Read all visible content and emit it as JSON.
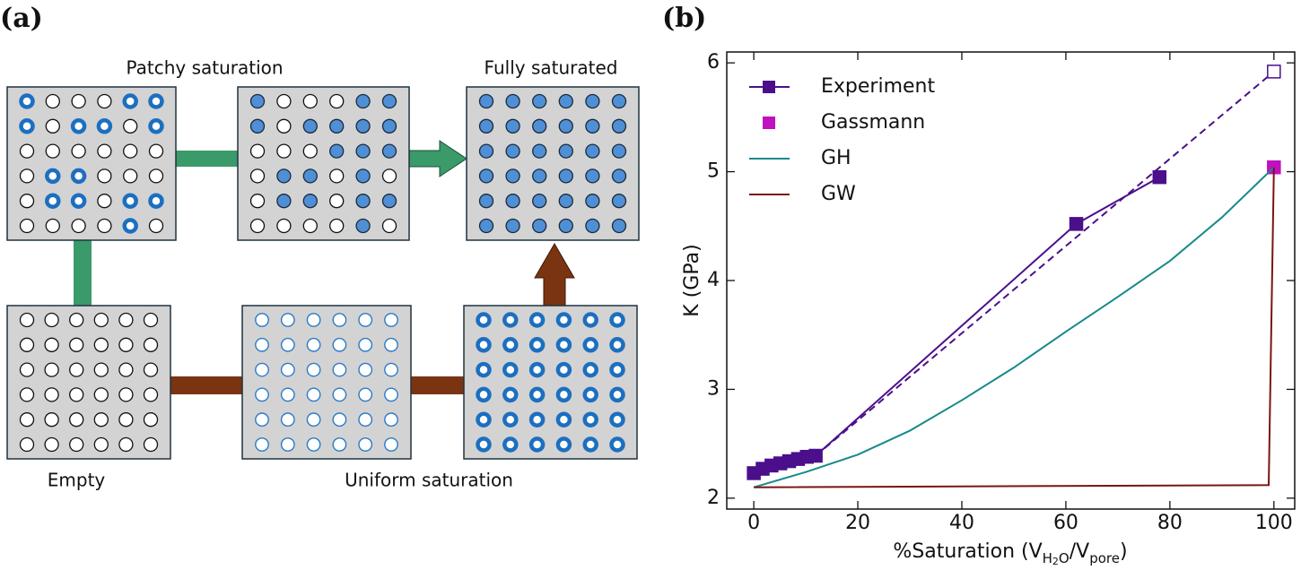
{
  "diagram": {
    "panel_label": "(a)",
    "labels": {
      "patchy": "Patchy saturation",
      "full": "Fully saturated",
      "empty": "Empty",
      "uniform": "Uniform saturation"
    }
  },
  "chart_data": {
    "type": "line",
    "panel_label": "(b)",
    "xlabel": {
      "main": "%Saturation (V",
      "sub1": "H",
      "sub2": "2",
      "sub3": "O",
      "mid": "/V",
      "sub4": "pore",
      "end": ")"
    },
    "ylabel": "K (GPa)",
    "xlim": [
      -5.2,
      104
    ],
    "ylim": [
      1.9,
      6.1
    ],
    "xticks": [
      0,
      20,
      40,
      60,
      80,
      100
    ],
    "yticks": [
      2,
      3,
      4,
      5,
      6
    ],
    "legend": "upper left",
    "series": [
      {
        "name": "Experiment",
        "color": "#4b0f8c",
        "marker": "square",
        "line": "solid",
        "x": [
          0,
          1.7,
          3.4,
          5.1,
          6.8,
          8.5,
          10.2,
          11.9,
          62,
          78
        ],
        "values": [
          2.23,
          2.27,
          2.3,
          2.32,
          2.34,
          2.36,
          2.38,
          2.39,
          4.52,
          4.95
        ]
      },
      {
        "color": "#4b0f8c",
        "marker": "open-square-end",
        "line": "dashed",
        "x": [
          11.9,
          100
        ],
        "values": [
          2.39,
          5.92
        ]
      },
      {
        "name": "Gassmann",
        "color": "#c010c0",
        "marker": "square",
        "line": "none",
        "x": [
          100
        ],
        "values": [
          5.04
        ]
      },
      {
        "name": "GH",
        "color": "#178a8a",
        "marker": "none",
        "line": "solid",
        "x": [
          0,
          10,
          20,
          30,
          40,
          50,
          60,
          70,
          80,
          90,
          100
        ],
        "values": [
          2.1,
          2.24,
          2.4,
          2.62,
          2.9,
          3.2,
          3.53,
          3.85,
          4.18,
          4.58,
          5.04
        ]
      },
      {
        "name": "GW",
        "color": "#7a1414",
        "marker": "none",
        "line": "solid",
        "x": [
          0,
          99,
          100
        ],
        "values": [
          2.1,
          2.12,
          5.04
        ]
      }
    ]
  }
}
